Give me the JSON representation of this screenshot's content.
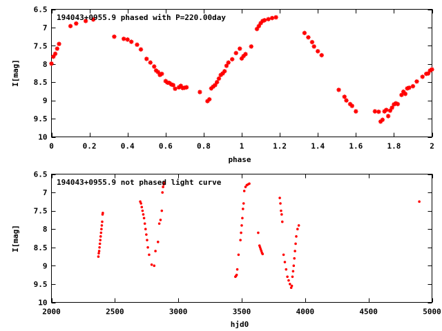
{
  "chart_data": [
    {
      "type": "scatter",
      "title": "194043+0955.9 phased with P=220.00day",
      "xlabel": "phase",
      "ylabel": "I[mag]",
      "xlim": [
        0,
        2
      ],
      "ylim": [
        6.5,
        10
      ],
      "y_inverted": true,
      "x_ticks": [
        0,
        0.2,
        0.4,
        0.6,
        0.8,
        1,
        1.2,
        1.4,
        1.6,
        1.8,
        2
      ],
      "x_tick_labels": [
        "0",
        "0.2",
        "0.4",
        "0.6",
        "0.8",
        "1",
        "1.2",
        "1.4",
        "1.6",
        "1.8",
        "2"
      ],
      "y_ticks": [
        6.5,
        7,
        7.5,
        8,
        8.5,
        9,
        9.5,
        10
      ],
      "y_tick_labels": [
        "6.5",
        "7",
        "7.5",
        "8",
        "8.5",
        "9",
        "9.5",
        "10"
      ],
      "grid": false,
      "marker": "star",
      "color": "#ff0000",
      "series": [
        {
          "x": [
            0.0,
            0.01,
            0.02,
            0.03,
            0.04,
            0.1,
            0.13,
            0.18,
            0.22,
            0.33,
            0.38,
            0.4,
            0.42,
            0.45,
            0.47,
            0.5,
            0.52,
            0.54,
            0.55,
            0.56,
            0.57,
            0.58,
            0.6,
            0.61,
            0.62,
            0.63,
            0.64,
            0.65,
            0.67,
            0.68,
            0.69,
            0.7,
            0.71,
            0.78,
            0.82,
            0.83,
            0.84,
            0.85,
            0.86,
            0.87,
            0.88,
            0.89,
            0.9,
            0.91,
            0.92,
            0.93,
            0.95,
            0.97,
            0.99,
            1.0,
            1.01,
            1.02,
            1.05,
            1.08,
            1.09,
            1.1,
            1.11,
            1.12,
            1.14,
            1.16,
            1.18,
            1.33,
            1.35,
            1.37,
            1.38,
            1.4,
            1.42,
            1.51,
            1.54,
            1.55,
            1.57,
            1.58,
            1.6,
            1.7,
            1.72,
            1.73,
            1.74,
            1.75,
            1.76,
            1.77,
            1.78,
            1.79,
            1.8,
            1.81,
            1.82,
            1.84,
            1.85,
            1.86,
            1.87,
            1.88,
            1.9,
            1.92,
            1.95,
            1.97,
            1.98,
            1.99,
            2.0
          ],
          "y": [
            7.99,
            7.8,
            7.72,
            7.58,
            7.45,
            6.96,
            6.89,
            6.82,
            6.78,
            7.25,
            7.31,
            7.33,
            7.39,
            7.47,
            7.6,
            7.86,
            7.96,
            8.07,
            8.18,
            8.22,
            8.3,
            8.27,
            8.47,
            8.51,
            8.52,
            8.56,
            8.58,
            8.68,
            8.64,
            8.6,
            8.66,
            8.65,
            8.64,
            8.77,
            9.02,
            8.97,
            8.67,
            8.62,
            8.58,
            8.5,
            8.4,
            8.3,
            8.26,
            8.2,
            8.05,
            7.96,
            7.87,
            7.7,
            7.58,
            7.85,
            7.78,
            7.73,
            7.52,
            7.04,
            6.96,
            6.88,
            6.82,
            6.8,
            6.77,
            6.74,
            6.72,
            7.15,
            7.27,
            7.4,
            7.52,
            7.65,
            7.76,
            8.71,
            8.9,
            9.0,
            9.1,
            9.15,
            9.3,
            9.3,
            9.31,
            9.58,
            9.53,
            9.3,
            9.26,
            9.43,
            9.28,
            9.2,
            9.11,
            9.08,
            9.1,
            8.85,
            8.76,
            8.82,
            8.67,
            8.65,
            8.61,
            8.48,
            8.35,
            8.27,
            8.26,
            8.18,
            8.15
          ]
        }
      ]
    },
    {
      "type": "scatter",
      "title": "194043+0955.9 not phased light curve",
      "xlabel": "hjd0",
      "ylabel": "I[mag]",
      "xlim": [
        2000,
        5000
      ],
      "ylim": [
        6.5,
        10
      ],
      "y_inverted": true,
      "x_ticks": [
        2000,
        2500,
        3000,
        3500,
        4000,
        4500,
        5000
      ],
      "x_tick_labels": [
        "2000",
        "2500",
        "3000",
        "3500",
        "4000",
        "4500",
        "5000"
      ],
      "y_ticks": [
        6.5,
        7,
        7.5,
        8,
        8.5,
        9,
        9.5,
        10
      ],
      "y_tick_labels": [
        "6.5",
        "7",
        "7.5",
        "8",
        "8.5",
        "9",
        "9.5",
        "10"
      ],
      "grid": false,
      "marker": "dot",
      "color": "#ff0000",
      "series": [
        {
          "x": [
            2370,
            2373,
            2376,
            2379,
            2382,
            2385,
            2388,
            2391,
            2394,
            2397,
            2400,
            2403,
            2405,
            2700,
            2706,
            2712,
            2718,
            2724,
            2730,
            2736,
            2742,
            2748,
            2754,
            2760,
            2770,
            2790,
            2810,
            2820,
            2840,
            2850,
            2860,
            2870,
            2875,
            2880,
            2885,
            2890,
            3450,
            3455,
            3460,
            3465,
            3475,
            3490,
            3495,
            3500,
            3505,
            3510,
            3515,
            3520,
            3530,
            3540,
            3550,
            3560,
            3630,
            3640,
            3645,
            3650,
            3655,
            3660,
            3665,
            3800,
            3805,
            3810,
            3815,
            3820,
            3830,
            3840,
            3850,
            3860,
            3870,
            3880,
            3890,
            3895,
            3900,
            3905,
            3910,
            3915,
            3920,
            3925,
            3930,
            3940,
            3950,
            4900
          ],
          "y": [
            8.75,
            8.66,
            8.6,
            8.5,
            8.4,
            8.3,
            8.2,
            8.1,
            8.0,
            7.9,
            7.8,
            7.6,
            7.56,
            7.25,
            7.3,
            7.4,
            7.5,
            7.6,
            7.7,
            7.85,
            8.0,
            8.15,
            8.3,
            8.5,
            8.7,
            8.97,
            9.0,
            8.6,
            8.35,
            7.85,
            7.75,
            7.5,
            7.0,
            6.85,
            6.78,
            6.74,
            9.3,
            9.28,
            9.25,
            9.1,
            8.7,
            8.3,
            8.1,
            7.9,
            7.7,
            7.45,
            7.3,
            6.96,
            6.85,
            6.8,
            6.78,
            6.76,
            8.1,
            8.45,
            8.5,
            8.55,
            8.6,
            8.65,
            8.68,
            7.15,
            7.3,
            7.5,
            7.6,
            7.8,
            8.7,
            8.9,
            9.1,
            9.3,
            9.4,
            9.5,
            9.6,
            9.55,
            9.3,
            9.15,
            9.0,
            8.8,
            8.6,
            8.4,
            8.2,
            8.0,
            7.9,
            7.25
          ]
        }
      ]
    }
  ]
}
